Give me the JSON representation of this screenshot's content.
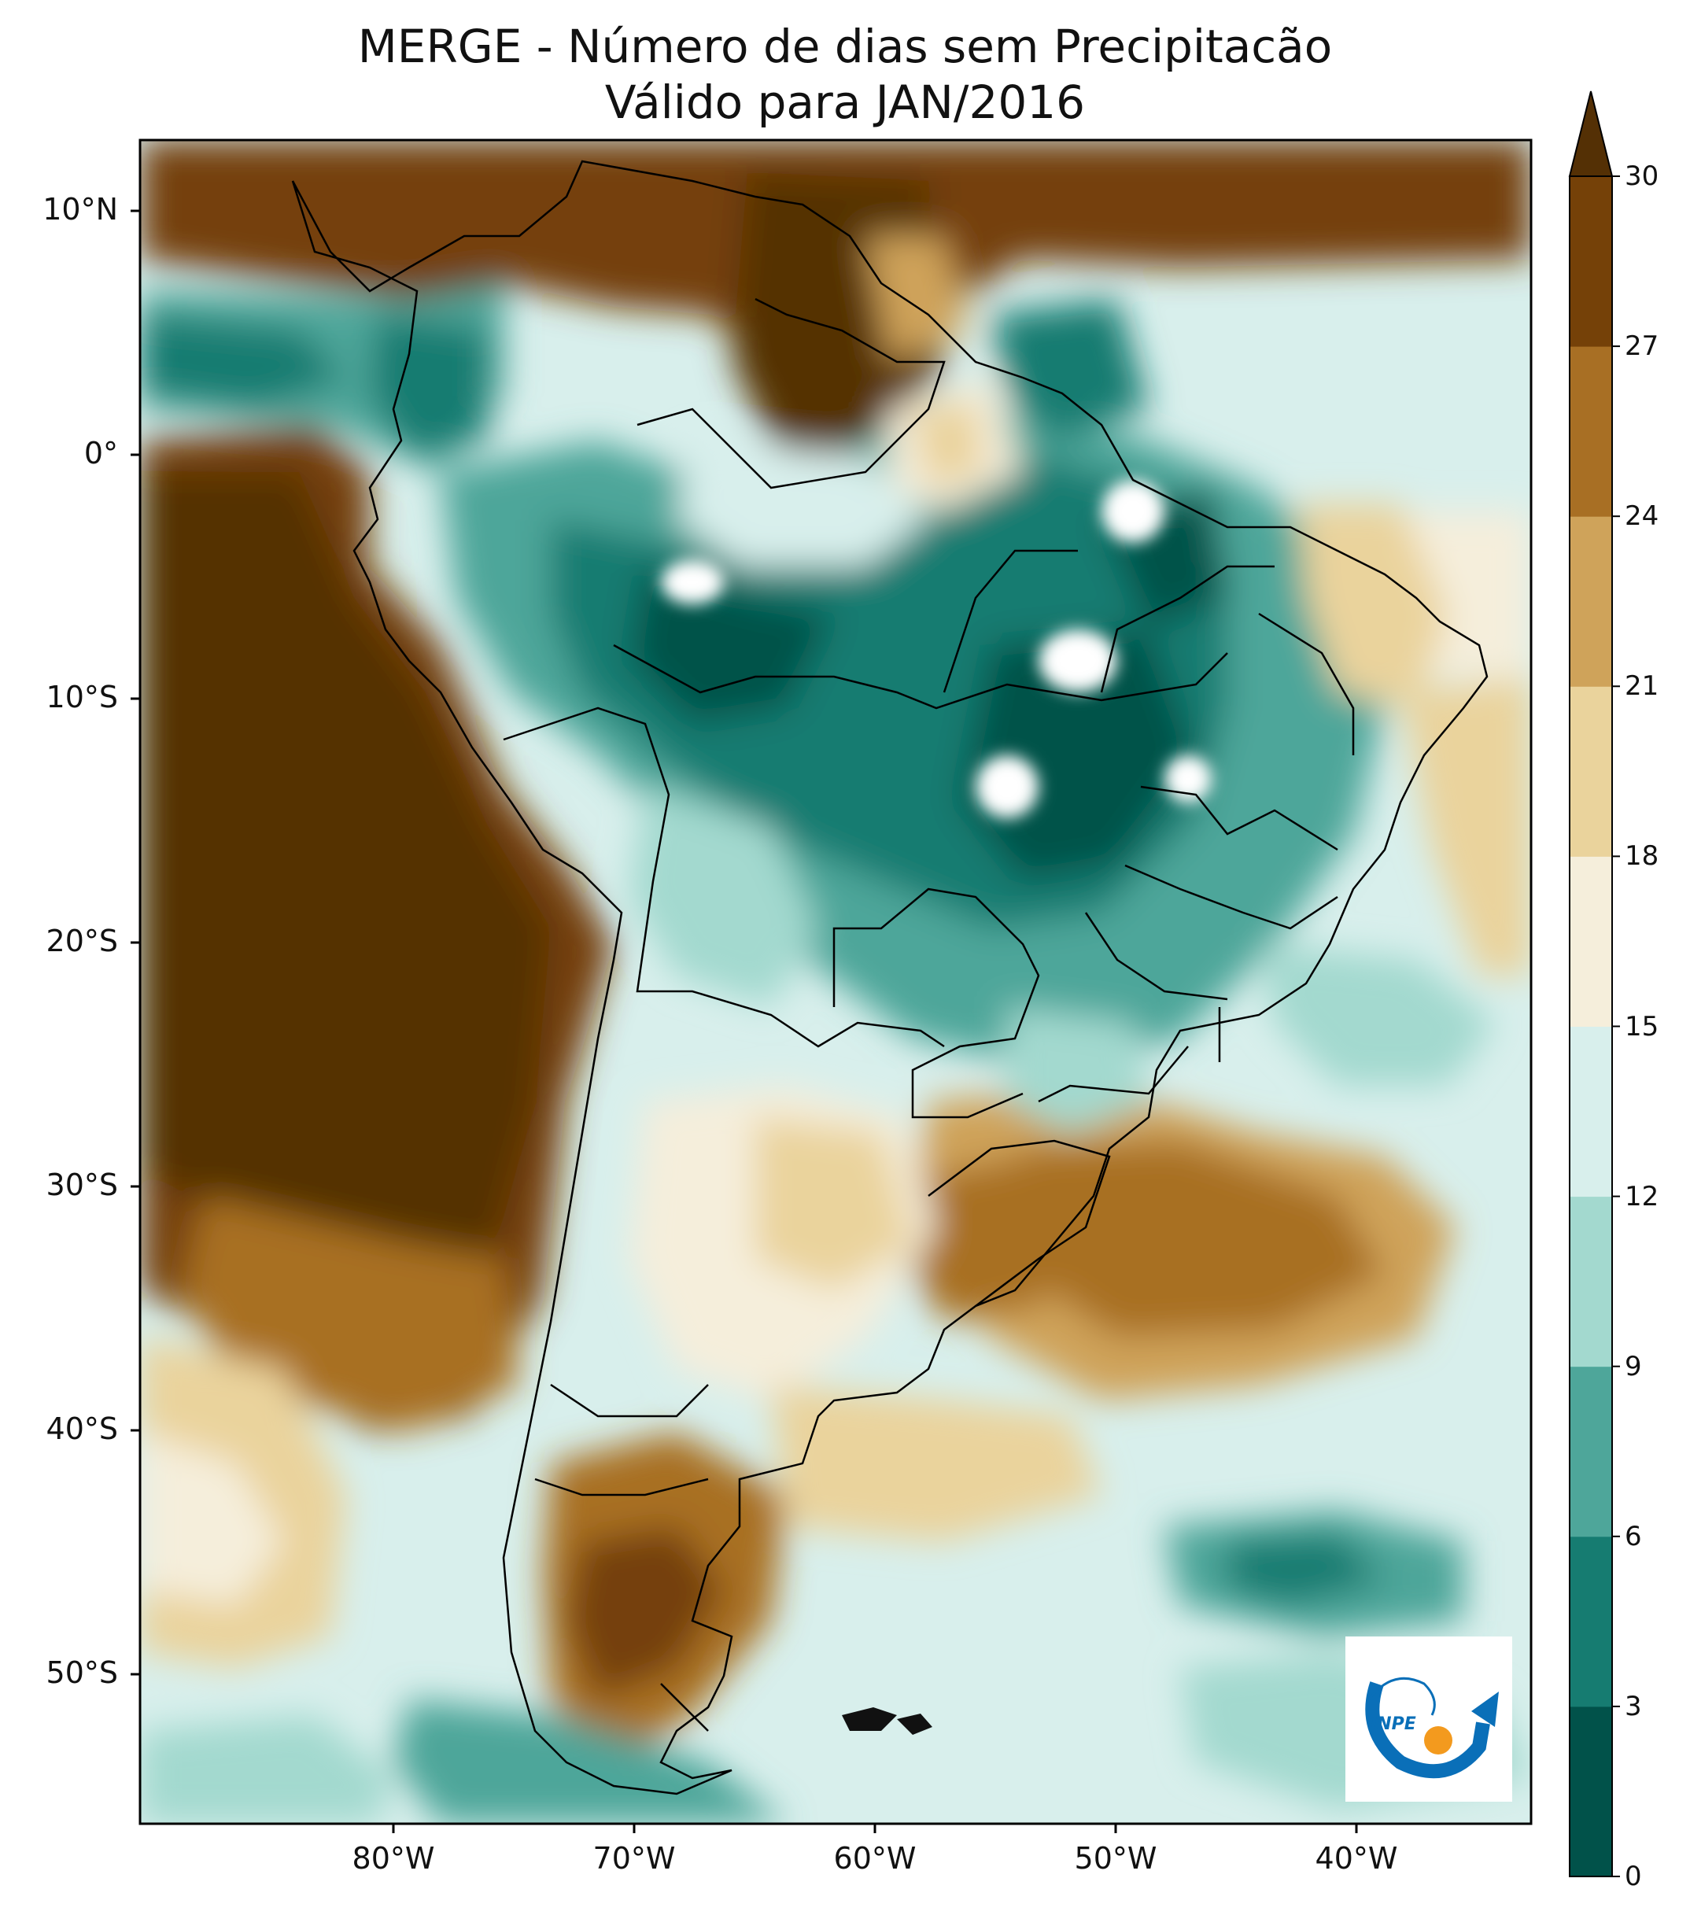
{
  "title": {
    "line1": "MERGE - Número de dias sem Precipitacão",
    "line2": "Válido para JAN/2016"
  },
  "map": {
    "region": "South America",
    "variable": "Número de dias sem Precipitacão",
    "lat_ticks": [
      "10°N",
      "0°",
      "10°S",
      "20°S",
      "30°S",
      "40°S",
      "50°S"
    ],
    "lon_ticks": [
      "80°W",
      "70°W",
      "60°W",
      "50°W",
      "40°W"
    ]
  },
  "colorbar": {
    "ticks": [
      "0",
      "3",
      "6",
      "9",
      "12",
      "15",
      "18",
      "21",
      "24",
      "27",
      "30"
    ],
    "extend": "max",
    "colors": [
      "#01524a",
      "#167c71",
      "#4ea69a",
      "#a3d9cf",
      "#d8efec",
      "#f5eedb",
      "#ead39c",
      "#cfa35a",
      "#a86f24",
      "#754108",
      "#543005"
    ]
  },
  "logo": {
    "text": "INPE"
  }
}
